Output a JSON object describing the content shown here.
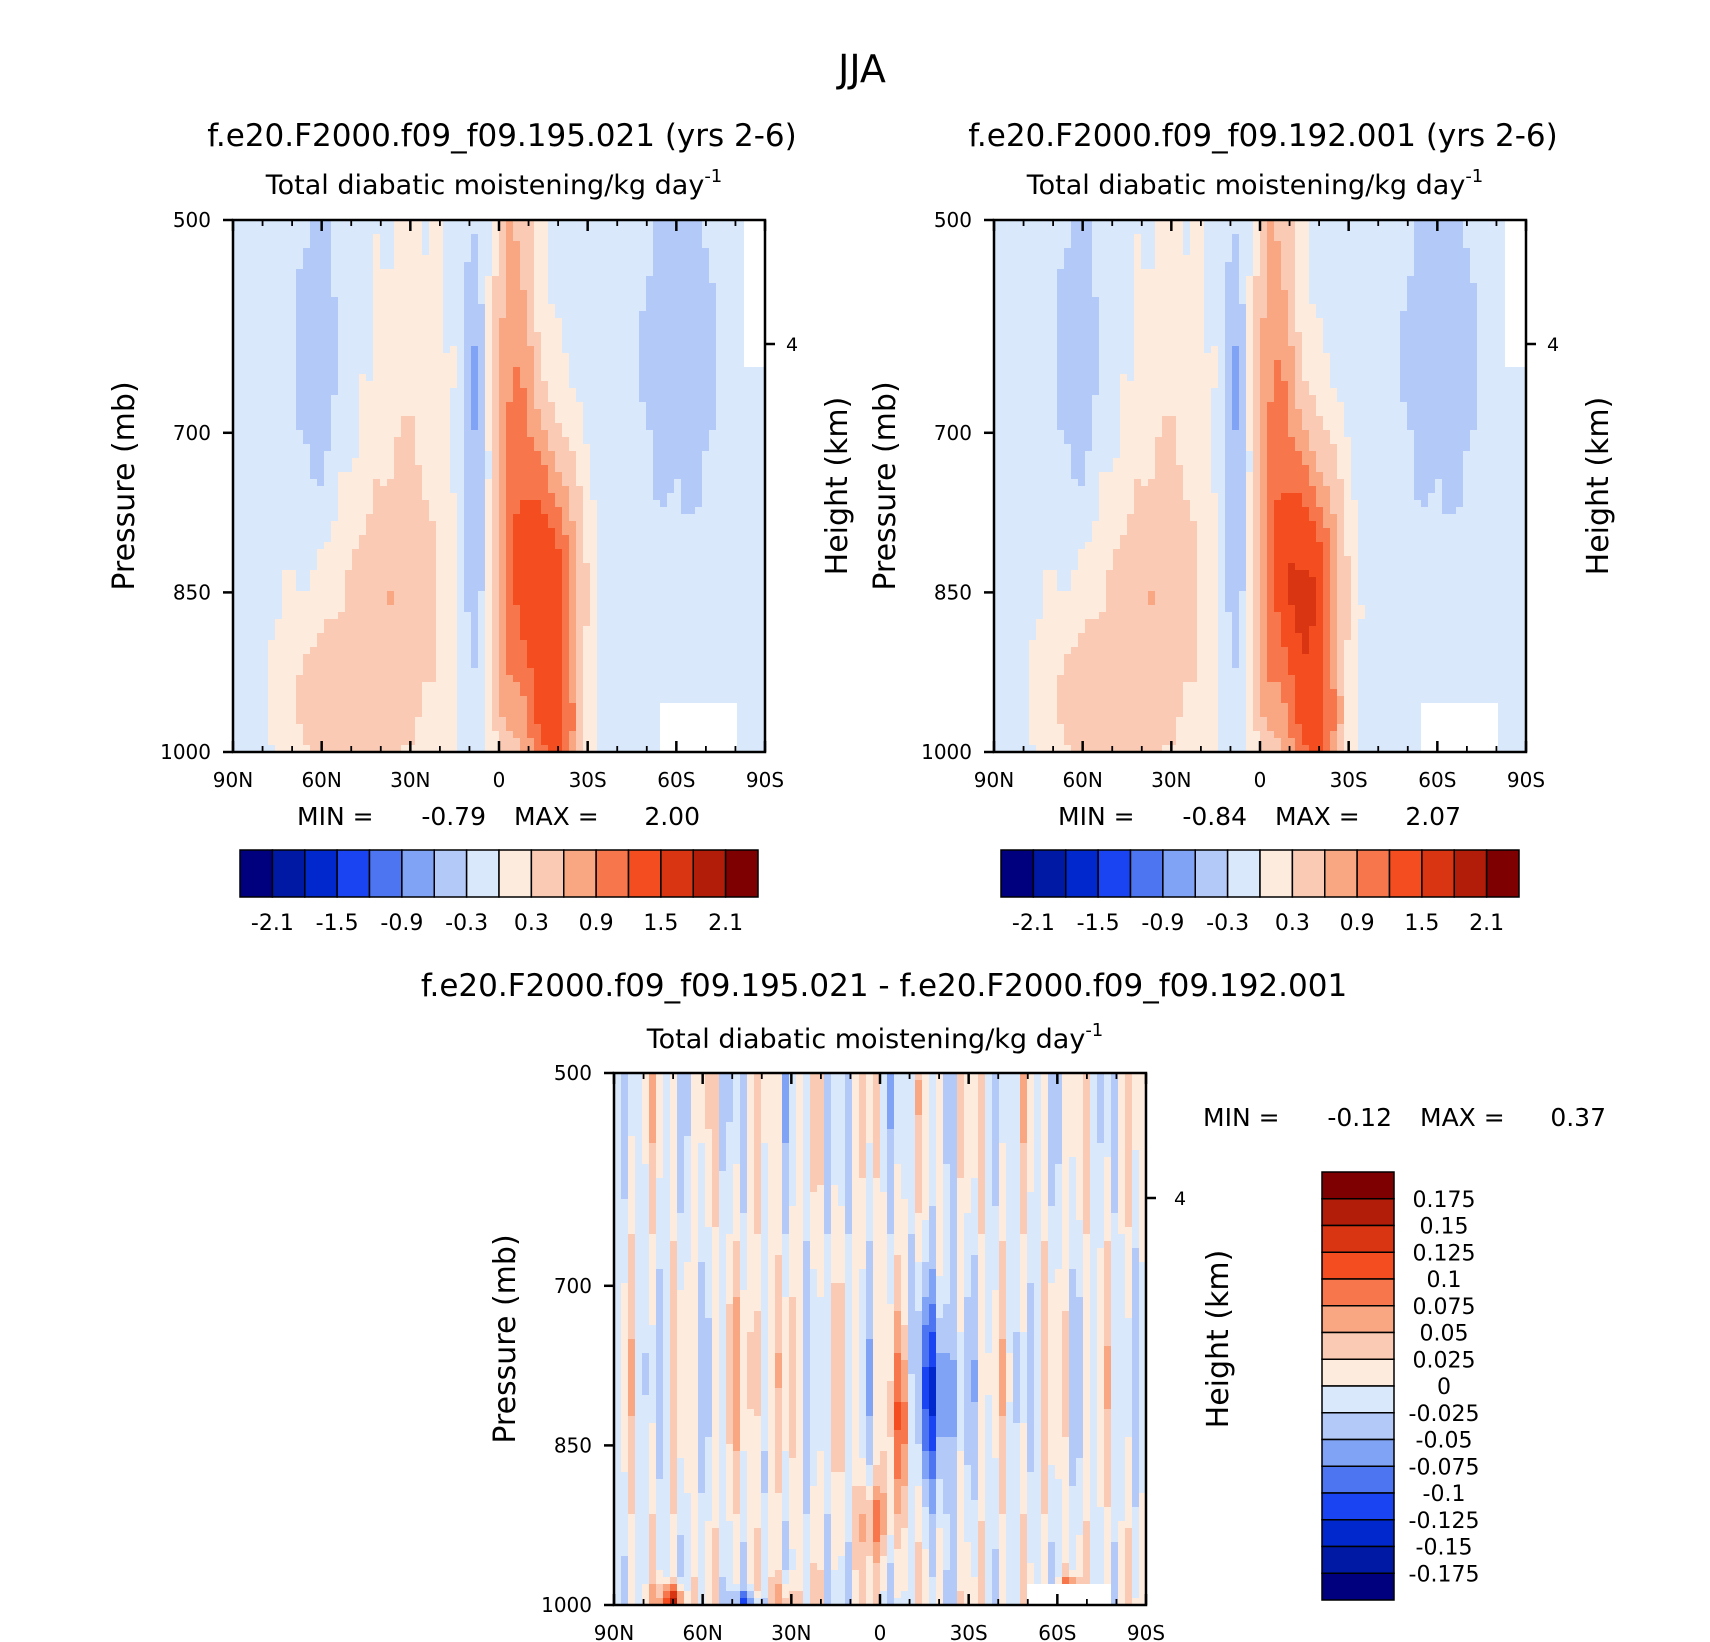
{
  "figure": {
    "title": "JJA"
  },
  "chart_data": [
    {
      "type": "heatmap",
      "title": "f.e20.F2000.f09_f09.195.021 (yrs 2-6)",
      "subtitle": "Total diabatic moistening/kg day",
      "subtitle_sup": "-1",
      "ylabel": "Pressure (mb)",
      "ylabel_right": "Height (km)",
      "x_ticks": [
        "90N",
        "60N",
        "30N",
        "0",
        "30S",
        "60S",
        "90S"
      ],
      "y_ticks": [
        500,
        700,
        850,
        1000
      ],
      "y_right_ticks": [
        "4"
      ],
      "ylim": [
        1000,
        500
      ],
      "min_label": "MIN =",
      "min_value": "-0.79",
      "max_label": "MAX =",
      "max_value": "2.00",
      "colorbar_ticks": [
        "-2.1",
        "-1.5",
        "-0.9",
        "-0.3",
        "0.3",
        "0.9",
        "1.5",
        "2.1"
      ],
      "features": [
        {
          "lat": -20,
          "p": 850,
          "value": 1.5
        },
        {
          "lat": -15,
          "p": 980,
          "value": 2.0
        },
        {
          "lat": 8,
          "p": 720,
          "value": -0.79
        },
        {
          "lat": 40,
          "p": 920,
          "value": 0.6
        }
      ]
    },
    {
      "type": "heatmap",
      "title": "f.e20.F2000.f09_f09.192.001 (yrs 2-6)",
      "subtitle": "Total diabatic moistening/kg day",
      "subtitle_sup": "-1",
      "ylabel": "Pressure (mb)",
      "ylabel_right": "Height (km)",
      "x_ticks": [
        "90N",
        "60N",
        "30N",
        "0",
        "30S",
        "60S",
        "90S"
      ],
      "y_ticks": [
        500,
        700,
        850,
        1000
      ],
      "y_right_ticks": [
        "4"
      ],
      "ylim": [
        1000,
        500
      ],
      "min_label": "MIN =",
      "min_value": "-0.84",
      "max_label": "MAX =",
      "max_value": "2.07",
      "colorbar_ticks": [
        "-2.1",
        "-1.5",
        "-0.9",
        "-0.3",
        "0.3",
        "0.9",
        "1.5",
        "2.1"
      ],
      "features": [
        {
          "lat": -22,
          "p": 860,
          "value": 1.6
        },
        {
          "lat": -15,
          "p": 980,
          "value": 2.07
        },
        {
          "lat": 8,
          "p": 720,
          "value": -0.84
        },
        {
          "lat": 40,
          "p": 920,
          "value": 0.6
        }
      ]
    },
    {
      "type": "heatmap",
      "title": "f.e20.F2000.f09_f09.195.021 - f.e20.F2000.f09_f09.192.001",
      "subtitle": "Total diabatic moistening/kg day",
      "subtitle_sup": "-1",
      "ylabel": "Pressure (mb)",
      "ylabel_right": "Height (km)",
      "x_ticks": [
        "90N",
        "60N",
        "30N",
        "0",
        "30S",
        "60S",
        "90S"
      ],
      "y_ticks": [
        500,
        700,
        850,
        1000
      ],
      "y_right_ticks": [
        "4"
      ],
      "ylim": [
        1000,
        500
      ],
      "min_label": "MIN =",
      "min_value": "-0.12",
      "max_label": "MAX =",
      "max_value": "0.37",
      "colorbar_ticks": [
        "0.175",
        "0.15",
        "0.125",
        "0.1",
        "0.075",
        "0.05",
        "0.025",
        "0",
        "-0.025",
        "-0.05",
        "-0.075",
        "-0.1",
        "-0.125",
        "-0.15",
        "-0.175"
      ],
      "features": [
        {
          "lat": -19,
          "p": 800,
          "value": -0.12
        },
        {
          "lat": -65,
          "p": 990,
          "value": 0.37
        },
        {
          "lat": 70,
          "p": 995,
          "value": 0.2
        }
      ]
    }
  ],
  "colors": {
    "panel_scale": [
      "#00007f",
      "#0019a5",
      "#0028cc",
      "#1a44f2",
      "#4d75f2",
      "#80a3f5",
      "#b3c9f7",
      "#d9e8fb",
      "#fdebde",
      "#fbcab4",
      "#f9a783",
      "#f7764c",
      "#f44d1f",
      "#d93512",
      "#b21d0a",
      "#7f0000"
    ],
    "diff_scale": [
      "#00007f",
      "#0019a5",
      "#0028cc",
      "#1a44f2",
      "#4d75f2",
      "#80a3f5",
      "#b3c9f7",
      "#d9e8fb",
      "#fdebde",
      "#fbcab4",
      "#f9a783",
      "#f7764c",
      "#f44d1f",
      "#d93512",
      "#b21d0a",
      "#7f0000"
    ]
  }
}
